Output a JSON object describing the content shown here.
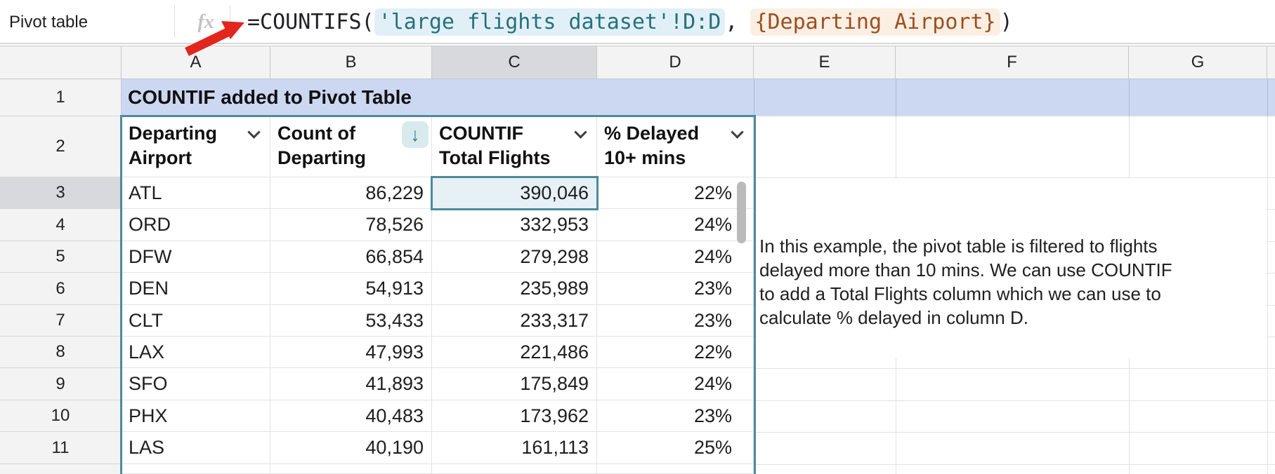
{
  "formula_bar": {
    "name_box_value": "Pivot table",
    "fx_icon": "fx",
    "formula": {
      "prefix": "=COUNTIFS(",
      "range_ref": "'large flights dataset'!D:D",
      "comma": ", ",
      "array_ref": "{Departing Airport}",
      "suffix": ")"
    }
  },
  "grid": {
    "column_letters": [
      "A",
      "B",
      "C",
      "D",
      "E",
      "F",
      "G"
    ],
    "row_numbers": [
      "1",
      "2",
      "3",
      "4",
      "5",
      "6",
      "7",
      "8",
      "9",
      "10",
      "11"
    ],
    "selected_cell": "C3",
    "selected_column": "C",
    "selected_row": "3"
  },
  "sheet": {
    "title": "COUNTIF added to Pivot Table",
    "sort_icon": "↓",
    "pivot_headers": [
      {
        "line1": "Departing",
        "line2": "Airport",
        "control": "filter-chevron"
      },
      {
        "line1": "Count of",
        "line2": "Departing",
        "control": "sort-descending"
      },
      {
        "line1": "COUNTIF",
        "line2": "Total Flights",
        "control": "filter-chevron"
      },
      {
        "line1": "% Delayed",
        "line2": "10+ mins",
        "control": "filter-chevron"
      }
    ],
    "pivot_rows": [
      {
        "airport": "ATL",
        "count_departing": "86,229",
        "countif_total": "390,046",
        "pct_delayed": "22%"
      },
      {
        "airport": "ORD",
        "count_departing": "78,526",
        "countif_total": "332,953",
        "pct_delayed": "24%"
      },
      {
        "airport": "DFW",
        "count_departing": "66,854",
        "countif_total": "279,298",
        "pct_delayed": "24%"
      },
      {
        "airport": "DEN",
        "count_departing": "54,913",
        "countif_total": "235,989",
        "pct_delayed": "23%"
      },
      {
        "airport": "CLT",
        "count_departing": "53,433",
        "countif_total": "233,317",
        "pct_delayed": "23%"
      },
      {
        "airport": "LAX",
        "count_departing": "47,993",
        "countif_total": "221,486",
        "pct_delayed": "22%"
      },
      {
        "airport": "SFO",
        "count_departing": "41,893",
        "countif_total": "175,849",
        "pct_delayed": "24%"
      },
      {
        "airport": "PHX",
        "count_departing": "40,483",
        "countif_total": "173,962",
        "pct_delayed": "23%"
      },
      {
        "airport": "LAS",
        "count_departing": "40,190",
        "countif_total": "161,113",
        "pct_delayed": "25%"
      }
    ],
    "note_lines": [
      "In this example, the pivot table is filtered to flights",
      "delayed more than 10 mins. We can use COUNTIF",
      "to add a Total Flights column which we can use to",
      "calculate % delayed in column D."
    ]
  },
  "colors": {
    "accent_teal": "#4d8a9c",
    "selection_fill": "#e7f1f5",
    "title_row_fill": "#ccd8f1",
    "formula_range_text": "#26707f",
    "formula_range_fill": "#e1f0f7",
    "formula_array_text": "#9c4f1e",
    "formula_array_fill": "#fbefe4",
    "arrow_red": "#e3261d"
  }
}
